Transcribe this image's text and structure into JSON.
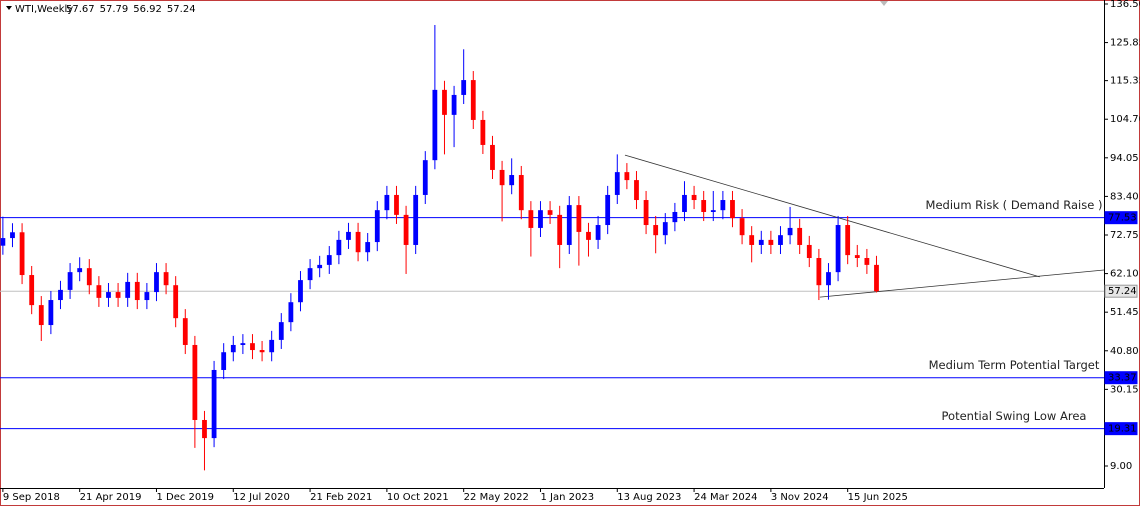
{
  "chart_data": {
    "type": "candlestick",
    "symbol": "WTI,Weekly",
    "header_ohlc": [
      57.67,
      57.79,
      56.92,
      57.24
    ],
    "up_color": "#0000ff",
    "down_color": "#ff0000",
    "open": [
      69.8,
      71.9,
      73.5,
      61.7,
      53.4,
      47.9,
      54.8,
      57.6,
      62.5,
      63.6,
      58.9,
      55.4,
      57.0,
      55.4,
      59.8,
      54.8,
      57.0,
      62.5,
      58.9,
      49.8,
      42.4,
      21.7,
      16.7,
      35.5,
      40.4,
      42.4,
      42.9,
      41.0,
      40.4,
      43.8,
      48.7,
      54.2,
      60.3,
      63.6,
      64.5,
      67.2,
      71.4,
      73.6,
      68.0,
      70.8,
      79.6,
      83.8,
      78.3,
      70.0,
      83.8,
      93.4,
      112.8,
      105.9,
      111.4,
      115.5,
      104.5,
      97.6,
      90.7,
      86.5,
      89.3,
      79.6,
      74.7,
      79.6,
      78.3,
      70.0,
      81.0,
      73.6,
      71.4,
      75.5,
      83.8,
      90.1,
      87.9,
      82.4,
      75.5,
      72.7,
      76.3,
      79.1,
      83.8,
      82.4,
      79.1,
      79.6,
      82.4,
      77.4,
      72.7,
      70.0,
      71.4,
      70.0,
      72.7,
      74.7,
      70.0,
      66.4,
      58.9,
      62.5,
      75.5,
      67.2,
      66.4,
      64.5
    ],
    "high": [
      77.8,
      76.0,
      76.0,
      64.2,
      55.9,
      57.3,
      60.1,
      65.0,
      66.6,
      66.1,
      61.4,
      59.5,
      59.5,
      62.3,
      62.3,
      59.5,
      65.0,
      65.0,
      61.4,
      52.3,
      44.9,
      24.2,
      38.0,
      42.9,
      44.9,
      45.4,
      45.4,
      43.5,
      46.3,
      51.2,
      56.7,
      62.8,
      66.1,
      67.0,
      69.7,
      73.9,
      76.1,
      76.1,
      73.3,
      82.1,
      86.3,
      86.3,
      80.8,
      86.3,
      95.9,
      130.7,
      115.3,
      113.9,
      124.0,
      118.0,
      107.0,
      100.1,
      93.2,
      93.9,
      91.8,
      82.1,
      82.1,
      82.1,
      80.8,
      83.5,
      83.5,
      76.1,
      78.0,
      86.3,
      95.0,
      92.6,
      90.4,
      84.9,
      78.0,
      78.8,
      81.6,
      87.6,
      86.3,
      84.9,
      84.9,
      84.9,
      84.9,
      79.9,
      75.2,
      73.9,
      73.9,
      75.2,
      80.5,
      77.2,
      72.5,
      68.9,
      65.0,
      78.0,
      78.0,
      70.0,
      68.9,
      67.0
    ],
    "low": [
      67.3,
      69.4,
      59.2,
      50.9,
      43.5,
      45.4,
      52.3,
      55.1,
      60.0,
      56.4,
      52.9,
      52.9,
      52.9,
      52.9,
      52.3,
      52.3,
      54.5,
      56.4,
      47.3,
      39.9,
      14.0,
      7.8,
      14.2,
      33.0,
      37.9,
      39.9,
      38.5,
      37.9,
      37.9,
      41.3,
      46.2,
      51.7,
      57.8,
      61.1,
      62.0,
      64.7,
      68.9,
      65.5,
      65.5,
      68.3,
      77.1,
      75.8,
      62.0,
      67.5,
      81.3,
      90.9,
      95.0,
      97.0,
      108.9,
      102.0,
      95.1,
      88.2,
      76.5,
      84.0,
      77.1,
      66.8,
      72.2,
      75.8,
      63.6,
      67.5,
      64.3,
      66.8,
      68.9,
      73.0,
      81.3,
      85.4,
      79.9,
      73.0,
      67.7,
      70.2,
      73.8,
      76.6,
      79.9,
      76.6,
      76.6,
      77.1,
      74.9,
      70.2,
      65.2,
      67.5,
      67.5,
      67.5,
      70.2,
      67.5,
      63.9,
      54.8,
      54.9,
      60.0,
      64.7,
      63.9,
      62.0,
      56.9
    ],
    "close": [
      71.9,
      73.5,
      61.7,
      53.4,
      47.9,
      54.8,
      57.6,
      62.5,
      63.6,
      58.9,
      55.4,
      57.0,
      55.4,
      59.8,
      54.8,
      57.0,
      62.5,
      58.9,
      49.8,
      42.4,
      21.7,
      16.7,
      35.5,
      40.4,
      42.4,
      42.9,
      41.0,
      40.4,
      43.8,
      48.7,
      54.2,
      60.3,
      63.6,
      64.5,
      67.2,
      71.4,
      73.6,
      68.0,
      70.8,
      79.6,
      83.8,
      78.3,
      70.0,
      83.8,
      93.4,
      112.8,
      105.9,
      111.4,
      115.5,
      104.5,
      97.6,
      90.7,
      86.5,
      89.3,
      79.6,
      74.7,
      79.6,
      78.3,
      70.0,
      81.0,
      73.6,
      71.4,
      75.5,
      83.8,
      90.1,
      87.9,
      82.4,
      75.5,
      72.7,
      76.3,
      79.1,
      83.8,
      82.4,
      79.1,
      79.6,
      82.4,
      77.4,
      72.7,
      70.0,
      71.4,
      70.0,
      72.7,
      74.7,
      70.0,
      66.4,
      58.9,
      62.5,
      75.5,
      67.2,
      66.4,
      64.5,
      57.24
    ],
    "xlim": [
      -0.3,
      114.7
    ],
    "xticks": [
      {
        "value": 0,
        "label": "9 Sep 2018"
      },
      {
        "value": 8,
        "label": "21 Apr 2019"
      },
      {
        "value": 16,
        "label": "1 Dec 2019"
      },
      {
        "value": 24,
        "label": "12 Jul 2020"
      },
      {
        "value": 32,
        "label": "21 Feb 2021"
      },
      {
        "value": 40,
        "label": "10 Oct 2021"
      },
      {
        "value": 48,
        "label": "22 May 2022"
      },
      {
        "value": 56,
        "label": "1 Jan 2023"
      },
      {
        "value": 64,
        "label": "13 Aug 2023"
      },
      {
        "value": 72,
        "label": "24 Mar 2024"
      },
      {
        "value": 80,
        "label": "3 Nov 2024"
      },
      {
        "value": 88,
        "label": "15 Jun 2025"
      }
    ],
    "ylim": [
      2.93,
      137.6
    ],
    "yticks": [
      {
        "value": 136.5,
        "label": "136.50"
      },
      {
        "value": 125.85,
        "label": "125.85"
      },
      {
        "value": 115.35,
        "label": "115.35"
      },
      {
        "value": 104.7,
        "label": "104.70"
      },
      {
        "value": 94.05,
        "label": "94.05"
      },
      {
        "value": 83.4,
        "label": "83.40"
      },
      {
        "value": 72.75,
        "label": "72.75"
      },
      {
        "value": 62.1,
        "label": "62.10"
      },
      {
        "value": 51.45,
        "label": "51.45"
      },
      {
        "value": 40.8,
        "label": "40.80"
      },
      {
        "value": 30.15,
        "label": "30.15"
      },
      {
        "value": 9.0,
        "label": "9.00"
      }
    ],
    "hlines": [
      {
        "value": 77.53,
        "color": "#0000ff",
        "label": "Medium Risk ( Demand Raise )"
      },
      {
        "value": 33.37,
        "color": "#0000ff",
        "label": "Medium Term Potential Target"
      },
      {
        "value": 19.31,
        "color": "#0000ff",
        "label": "Potential Swing Low Area"
      },
      {
        "value": 57.24,
        "color": "#c0c0c0"
      }
    ],
    "trendlines": [
      {
        "x": [
          64.8,
          108.0
        ],
        "y": [
          94.8,
          61.2
        ],
        "color": "#333333"
      },
      {
        "x": [
          85.1,
          114.7
        ],
        "y": [
          55.6,
          63.1
        ],
        "color": "#333333"
      }
    ]
  }
}
